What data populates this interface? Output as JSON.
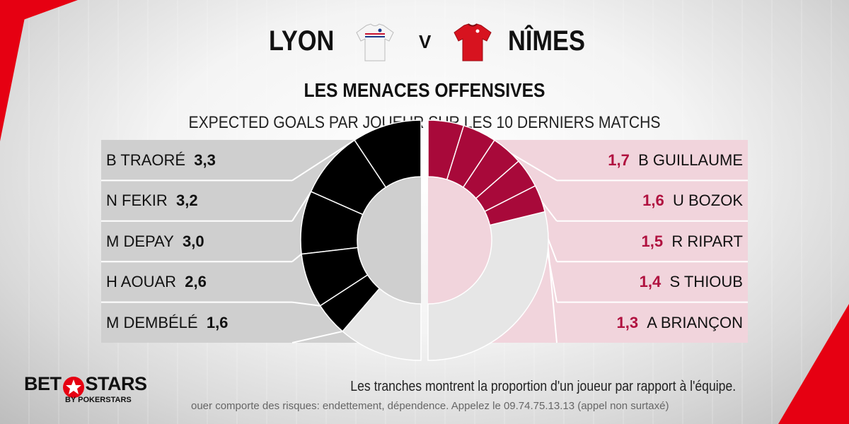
{
  "header": {
    "home_team": "LYON",
    "versus": "V",
    "away_team": "NÎMES"
  },
  "colors": {
    "home_slice": "#000000",
    "away_slice": "#a8093a",
    "remainder": "#e6e6e6",
    "accent": "#e60012"
  },
  "chart_data": {
    "type": "pie",
    "title": "LES MENACES OFFENSIVES",
    "subtitle": "EXPECTED GOALS PAR JOUEUR SUR LES 10 DERNIERS MATCHS",
    "series": [
      {
        "name": "LYON",
        "players": [
          "B TRAORÉ",
          "N FEKIR",
          "M DEPAY",
          "H AOUAR",
          "M DEMBÉLÉ"
        ],
        "values": [
          3.3,
          3.2,
          3.0,
          2.6,
          1.6
        ],
        "labels": [
          "3,3",
          "3,2",
          "3,0",
          "2,6",
          "1,6"
        ]
      },
      {
        "name": "NÎMES",
        "players": [
          "B GUILLAUME",
          "U BOZOK",
          "R RIPART",
          "S THIOUB",
          "A BRIANÇON"
        ],
        "values": [
          1.7,
          1.6,
          1.5,
          1.4,
          1.3
        ],
        "labels": [
          "1,7",
          "1,6",
          "1,5",
          "1,4",
          "1,3"
        ]
      }
    ]
  },
  "footer": {
    "brand_main_left": "BET",
    "brand_main_right": "STARS",
    "brand_sub": "BY POKERSTARS",
    "note": "Les tranches montrent la proportion d'un joueur par rapport à l'équipe.",
    "disclaimer": "ouer comporte des risques: endettement, dépendence. Appelez le 09.74.75.13.13 (appel non surtaxé)"
  }
}
